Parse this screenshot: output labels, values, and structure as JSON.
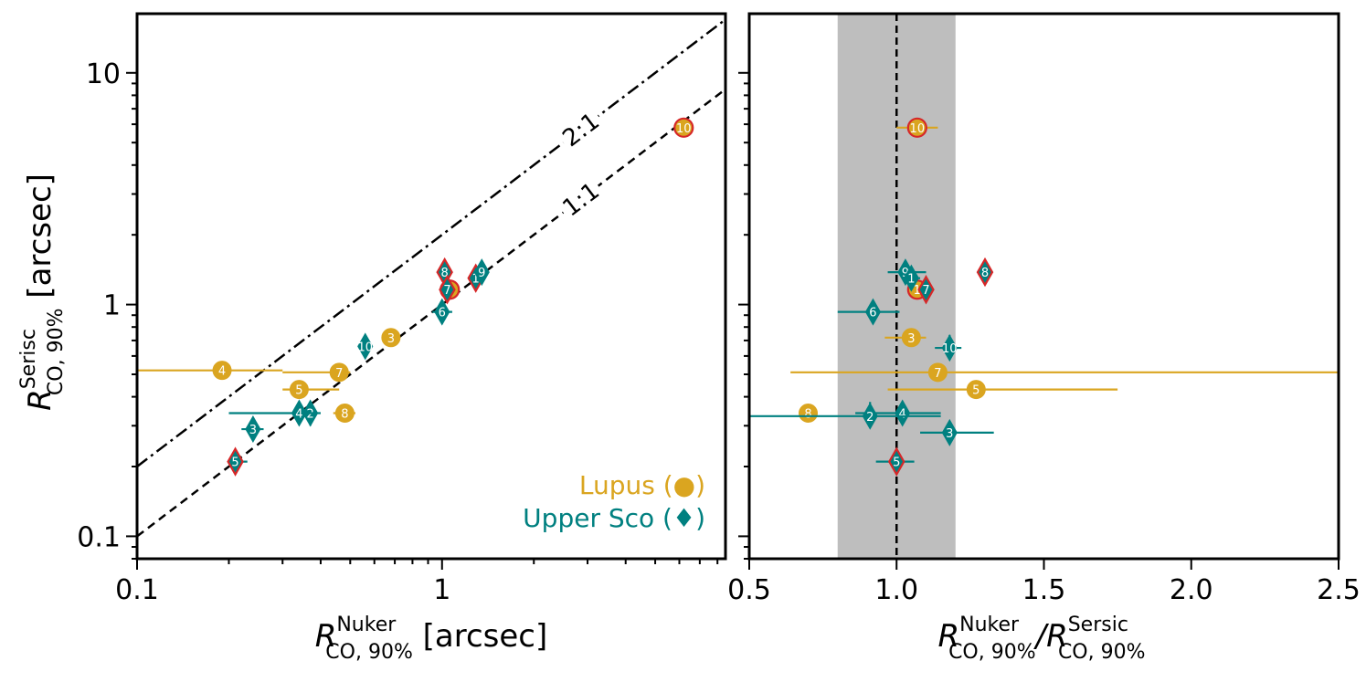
{
  "colors": {
    "lupus": "#DAA520",
    "uppersco": "#008080",
    "highlight": "#D62728",
    "band": "#BEBEBE",
    "axis": "#000000"
  },
  "chart_data": [
    {
      "type": "scatter",
      "xscale": "log",
      "yscale": "log",
      "xlim": [
        0.1,
        8.5
      ],
      "ylim": [
        0.08,
        18
      ],
      "xlabel": {
        "main": "R",
        "sup": "Nuker",
        "sub": "CO, 90%",
        "unit": " [arcsec]"
      },
      "ylabel": {
        "main": "R",
        "sup": "Serisc",
        "sub": "CO, 90%",
        "unit": " [arcsec]"
      },
      "xticks": [
        {
          "value": 0.1,
          "label": "0.1"
        },
        {
          "value": 1,
          "label": "1"
        }
      ],
      "yticks": [
        {
          "value": 0.1,
          "label": "0.1"
        },
        {
          "value": 1,
          "label": "1"
        },
        {
          "value": 10,
          "label": "10"
        }
      ],
      "lines": [
        {
          "name": "2:1",
          "ratio": 2,
          "dash": "dashdot",
          "label": "2:1",
          "label_x": 2.85
        },
        {
          "name": "1:1",
          "ratio": 1,
          "dash": "dashed",
          "label": "1:1",
          "label_x": 2.85
        }
      ],
      "legend": {
        "position": "bottom-right",
        "entries": [
          {
            "label": "Lupus (●)",
            "series": "lupus"
          },
          {
            "label": "Upper Sco (♦)",
            "series": "uppersco"
          }
        ]
      },
      "series": [
        {
          "name": "Lupus",
          "key": "lupus",
          "marker": "circle",
          "points": [
            {
              "id": "3",
              "x": 0.68,
              "y": 0.72,
              "xerr": [
                0.64,
                0.72
              ]
            },
            {
              "id": "4",
              "x": 0.19,
              "y": 0.52,
              "xerr": [
                0.1,
                0.3
              ]
            },
            {
              "id": "5",
              "x": 0.34,
              "y": 0.43,
              "xerr": [
                0.3,
                0.46
              ]
            },
            {
              "id": "7",
              "x": 0.46,
              "y": 0.51,
              "xerr": [
                0.3,
                0.5
              ]
            },
            {
              "id": "8",
              "x": 0.48,
              "y": 0.34,
              "xerr": [
                0.44,
                0.52
              ]
            },
            {
              "id": "1",
              "x": 1.06,
              "y": 1.16,
              "xerr": [
                1.0,
                1.12
              ],
              "highlight": true
            },
            {
              "id": "10",
              "x": 6.2,
              "y": 5.8,
              "xerr": [
                6.0,
                6.4
              ],
              "highlight": true
            }
          ]
        },
        {
          "name": "Upper Sco",
          "key": "uppersco",
          "marker": "diamond",
          "points": [
            {
              "id": "2",
              "x": 0.37,
              "y": 0.34,
              "xerr": [
                0.34,
                0.4
              ],
              "yerr": [
                0.3,
                0.38
              ]
            },
            {
              "id": "3",
              "x": 0.24,
              "y": 0.29,
              "xerr": [
                0.22,
                0.26
              ],
              "yerr": [
                0.27,
                0.31
              ]
            },
            {
              "id": "4",
              "x": 0.34,
              "y": 0.34,
              "xerr": [
                0.2,
                0.38
              ],
              "yerr": [
                0.32,
                0.36
              ]
            },
            {
              "id": "5",
              "x": 0.21,
              "y": 0.21,
              "xerr": [
                0.2,
                0.23
              ],
              "highlight": true
            },
            {
              "id": "6",
              "x": 1.0,
              "y": 0.93,
              "xerr": [
                0.93,
                1.08
              ]
            },
            {
              "id": "8",
              "x": 1.02,
              "y": 1.38,
              "highlight": true
            },
            {
              "id": "10",
              "x": 0.56,
              "y": 0.66,
              "xerr": [
                0.54,
                0.58
              ],
              "yerr": [
                0.59,
                0.74
              ]
            },
            {
              "id": "1",
              "x": 1.29,
              "y": 1.3,
              "highlight": true
            },
            {
              "id": "9",
              "x": 1.35,
              "y": 1.38,
              "xerr": [
                1.3,
                1.4
              ],
              "yerr": [
                1.27,
                1.49
              ]
            },
            {
              "id": "7",
              "x": 1.04,
              "y": 1.16,
              "highlight": true
            }
          ]
        }
      ]
    },
    {
      "type": "scatter",
      "xscale": "linear",
      "yscale": "log",
      "xlim": [
        0.5,
        2.5
      ],
      "ylim": [
        0.08,
        18
      ],
      "xlabel": {
        "main": "R",
        "sup": "Nuker",
        "sub": "CO, 90%",
        "sep": "/",
        "main2": "R",
        "sup2": "Sersic",
        "sub2": "CO, 90%"
      },
      "xticks": [
        {
          "value": 0.5,
          "label": "0.5"
        },
        {
          "value": 1.0,
          "label": "1.0"
        },
        {
          "value": 1.5,
          "label": "1.5"
        },
        {
          "value": 2.0,
          "label": "2.0"
        },
        {
          "value": 2.5,
          "label": "2.5"
        }
      ],
      "yticks": [
        {
          "value": 0.1
        },
        {
          "value": 1
        },
        {
          "value": 10
        }
      ],
      "vline": 1.0,
      "band": [
        0.8,
        1.2
      ],
      "series": [
        {
          "name": "Lupus",
          "key": "lupus",
          "marker": "circle",
          "points": [
            {
              "id": "10",
              "x": 1.07,
              "y": 5.8,
              "xerr": [
                1.0,
                1.14
              ],
              "highlight": true
            },
            {
              "id": "1",
              "x": 1.07,
              "y": 1.16,
              "xerr": [
                1.04,
                1.1
              ],
              "highlight": true
            },
            {
              "id": "3",
              "x": 1.05,
              "y": 0.72,
              "xerr": [
                0.96,
                1.1
              ]
            },
            {
              "id": "7",
              "x": 1.14,
              "y": 0.51,
              "xerr": [
                0.64,
                2.5
              ]
            },
            {
              "id": "5",
              "x": 1.27,
              "y": 0.43,
              "xerr": [
                0.97,
                1.75
              ]
            },
            {
              "id": "8",
              "x": 0.7,
              "y": 0.34,
              "xerr": [
                0.68,
                0.72
              ]
            }
          ]
        },
        {
          "name": "Upper Sco",
          "key": "uppersco",
          "marker": "diamond",
          "points": [
            {
              "id": "9",
              "x": 1.03,
              "y": 1.38,
              "xerr": [
                0.97,
                1.1
              ],
              "yerr": [
                1.27,
                1.49
              ]
            },
            {
              "id": "1",
              "x": 1.05,
              "y": 1.3,
              "xerr": [
                1.02,
                1.08
              ]
            },
            {
              "id": "7",
              "x": 1.1,
              "y": 1.16,
              "highlight": true
            },
            {
              "id": "8",
              "x": 1.3,
              "y": 1.38,
              "xerr": [
                1.28,
                1.32
              ],
              "highlight": true
            },
            {
              "id": "6",
              "x": 0.92,
              "y": 0.93,
              "xerr": [
                0.8,
                1.01
              ]
            },
            {
              "id": "10",
              "x": 1.18,
              "y": 0.65,
              "xerr": [
                1.13,
                1.22
              ],
              "yerr": [
                0.59,
                0.74
              ]
            },
            {
              "id": "4",
              "x": 1.02,
              "y": 0.34,
              "xerr": [
                0.86,
                1.15
              ],
              "yerr": [
                0.32,
                0.37
              ]
            },
            {
              "id": "2",
              "x": 0.91,
              "y": 0.33,
              "xerr": [
                0.5,
                1.15
              ],
              "yerr": [
                0.3,
                0.38
              ]
            },
            {
              "id": "3",
              "x": 1.18,
              "y": 0.28,
              "xerr": [
                1.08,
                1.33
              ],
              "yerr": [
                0.26,
                0.31
              ]
            },
            {
              "id": "5",
              "x": 1.0,
              "y": 0.21,
              "xerr": [
                0.93,
                1.06
              ],
              "highlight": true
            }
          ]
        }
      ]
    }
  ]
}
